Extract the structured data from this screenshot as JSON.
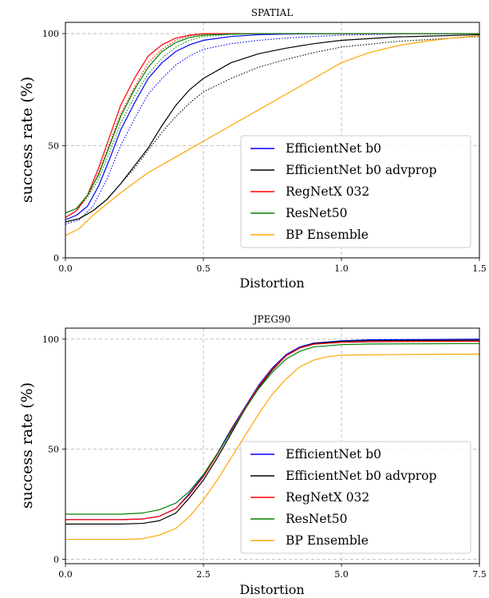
{
  "chart_data": [
    {
      "type": "line",
      "title": "SPATIAL",
      "xlabel": "Distortion",
      "ylabel": "success rate (%)",
      "xlim": [
        0,
        1.5
      ],
      "ylim": [
        0,
        105
      ],
      "xticks": [
        0,
        0.5,
        1.0,
        1.5
      ],
      "xtick_labels": [
        "0.0",
        "0.5",
        "1.0",
        "1.5"
      ],
      "yticks": [
        0,
        50,
        100
      ],
      "ytick_labels": [
        "0",
        "50",
        "100"
      ],
      "grid": true,
      "legend_position": "lower-right",
      "series": [
        {
          "name": "EfficientNet b0",
          "color": "#0000ff",
          "dash": false,
          "points": [
            [
              0,
              17
            ],
            [
              0.04,
              19
            ],
            [
              0.08,
              23
            ],
            [
              0.12,
              32
            ],
            [
              0.16,
              44
            ],
            [
              0.2,
              57
            ],
            [
              0.25,
              69
            ],
            [
              0.3,
              80
            ],
            [
              0.35,
              87
            ],
            [
              0.4,
              92
            ],
            [
              0.45,
              95
            ],
            [
              0.5,
              97
            ],
            [
              0.6,
              98.7
            ],
            [
              0.7,
              99.5
            ],
            [
              0.8,
              99.8
            ],
            [
              1.0,
              100
            ],
            [
              1.5,
              100
            ]
          ]
        },
        {
          "name": "EfficientNet b0 advprop",
          "color": "#000000",
          "dash": false,
          "points": [
            [
              0,
              16
            ],
            [
              0.05,
              17.5
            ],
            [
              0.1,
              21
            ],
            [
              0.15,
              26
            ],
            [
              0.2,
              33
            ],
            [
              0.25,
              41
            ],
            [
              0.3,
              49
            ],
            [
              0.35,
              59
            ],
            [
              0.4,
              68
            ],
            [
              0.45,
              75
            ],
            [
              0.5,
              80
            ],
            [
              0.6,
              87
            ],
            [
              0.7,
              91
            ],
            [
              0.8,
              93.5
            ],
            [
              0.9,
              95.5
            ],
            [
              1.0,
              97
            ],
            [
              1.2,
              98.5
            ],
            [
              1.5,
              99.5
            ]
          ]
        },
        {
          "name": "RegNetX 032",
          "color": "#ff0000",
          "dash": false,
          "points": [
            [
              0,
              18
            ],
            [
              0.04,
              21
            ],
            [
              0.08,
              28
            ],
            [
              0.12,
              40
            ],
            [
              0.16,
              54
            ],
            [
              0.2,
              68
            ],
            [
              0.25,
              80
            ],
            [
              0.3,
              90
            ],
            [
              0.35,
              95
            ],
            [
              0.4,
              98
            ],
            [
              0.45,
              99.3
            ],
            [
              0.5,
              100
            ],
            [
              1.5,
              100
            ]
          ]
        },
        {
          "name": "ResNet50",
          "color": "#008000",
          "dash": false,
          "points": [
            [
              0,
              20
            ],
            [
              0.04,
              22
            ],
            [
              0.08,
              28
            ],
            [
              0.12,
              37
            ],
            [
              0.16,
              50
            ],
            [
              0.2,
              63
            ],
            [
              0.25,
              75
            ],
            [
              0.3,
              85
            ],
            [
              0.35,
              92
            ],
            [
              0.4,
              96
            ],
            [
              0.45,
              98.3
            ],
            [
              0.5,
              99.3
            ],
            [
              0.6,
              99.8
            ],
            [
              0.7,
              100
            ],
            [
              1.5,
              100
            ]
          ]
        },
        {
          "name": "BP Ensemble",
          "color": "#ffa500",
          "dash": false,
          "points": [
            [
              0,
              10
            ],
            [
              0.05,
              13
            ],
            [
              0.1,
              19
            ],
            [
              0.15,
              24
            ],
            [
              0.2,
              29
            ],
            [
              0.3,
              38
            ],
            [
              0.4,
              45
            ],
            [
              0.5,
              52
            ],
            [
              0.6,
              59
            ],
            [
              0.7,
              66
            ],
            [
              0.8,
              73
            ],
            [
              0.9,
              80
            ],
            [
              1.0,
              87
            ],
            [
              1.1,
              91.5
            ],
            [
              1.2,
              94.5
            ],
            [
              1.3,
              96.5
            ],
            [
              1.4,
              98
            ],
            [
              1.5,
              99
            ]
          ]
        },
        {
          "name": "",
          "color": "#0000ff",
          "dash": true,
          "points": [
            [
              0,
              15
            ],
            [
              0.05,
              17
            ],
            [
              0.1,
              23
            ],
            [
              0.15,
              35
            ],
            [
              0.2,
              50
            ],
            [
              0.25,
              62
            ],
            [
              0.3,
              73
            ],
            [
              0.35,
              80
            ],
            [
              0.4,
              86
            ],
            [
              0.45,
              90
            ],
            [
              0.5,
              93
            ],
            [
              0.6,
              95.5
            ],
            [
              0.7,
              97
            ],
            [
              0.8,
              98
            ],
            [
              0.9,
              98.7
            ],
            [
              1.0,
              99.3
            ],
            [
              1.2,
              99.8
            ],
            [
              1.5,
              100
            ]
          ]
        },
        {
          "name": "",
          "color": "#000000",
          "dash": true,
          "points": [
            [
              0,
              16
            ],
            [
              0.05,
              17.5
            ],
            [
              0.1,
              21
            ],
            [
              0.15,
              26
            ],
            [
              0.2,
              33
            ],
            [
              0.25,
              40
            ],
            [
              0.3,
              48
            ],
            [
              0.35,
              56
            ],
            [
              0.4,
              63
            ],
            [
              0.45,
              69
            ],
            [
              0.5,
              74
            ],
            [
              0.6,
              80
            ],
            [
              0.7,
              85
            ],
            [
              0.8,
              88.5
            ],
            [
              0.9,
              91.5
            ],
            [
              1.0,
              94
            ],
            [
              1.2,
              96.5
            ],
            [
              1.5,
              98.7
            ]
          ]
        },
        {
          "name": "",
          "color": "#ff0000",
          "dash": true,
          "points": [
            [
              0,
              18
            ],
            [
              0.04,
              21
            ],
            [
              0.08,
              27
            ],
            [
              0.12,
              38
            ],
            [
              0.16,
              51
            ],
            [
              0.2,
              64
            ],
            [
              0.25,
              76
            ],
            [
              0.3,
              87
            ],
            [
              0.35,
              93
            ],
            [
              0.4,
              97
            ],
            [
              0.45,
              99
            ],
            [
              0.5,
              99.8
            ],
            [
              1.5,
              100
            ]
          ]
        },
        {
          "name": "",
          "color": "#008000",
          "dash": true,
          "points": [
            [
              0,
              20
            ],
            [
              0.04,
              22
            ],
            [
              0.08,
              27
            ],
            [
              0.12,
              35
            ],
            [
              0.16,
              47
            ],
            [
              0.2,
              60
            ],
            [
              0.25,
              72
            ],
            [
              0.3,
              82
            ],
            [
              0.35,
              89
            ],
            [
              0.4,
              94
            ],
            [
              0.45,
              97
            ],
            [
              0.5,
              98.7
            ],
            [
              0.6,
              99.6
            ],
            [
              0.7,
              100
            ],
            [
              1.5,
              100
            ]
          ]
        }
      ]
    },
    {
      "type": "line",
      "title": "JPEG90",
      "xlabel": "Distortion",
      "ylabel": "success rate (%)",
      "xlim": [
        0,
        7.5
      ],
      "ylim": [
        -2,
        105
      ],
      "xticks": [
        0,
        2.5,
        5.0,
        7.5
      ],
      "xtick_labels": [
        "0.0",
        "2.5",
        "5.0",
        "7.5"
      ],
      "yticks": [
        0,
        50,
        100
      ],
      "ytick_labels": [
        "0",
        "50",
        "100"
      ],
      "grid": true,
      "legend_position": "lower-right",
      "series": [
        {
          "name": "EfficientNet b0",
          "color": "#0000ff",
          "dash": false,
          "points": [
            [
              0,
              18
            ],
            [
              1.0,
              18
            ],
            [
              1.4,
              18.3
            ],
            [
              1.7,
              19.5
            ],
            [
              2.0,
              23
            ],
            [
              2.25,
              30
            ],
            [
              2.5,
              38
            ],
            [
              2.75,
              48
            ],
            [
              3.0,
              59
            ],
            [
              3.25,
              69
            ],
            [
              3.5,
              79
            ],
            [
              3.75,
              87
            ],
            [
              4.0,
              93
            ],
            [
              4.25,
              96.5
            ],
            [
              4.5,
              98.2
            ],
            [
              5.0,
              99.2
            ],
            [
              5.5,
              99.7
            ],
            [
              7.5,
              100
            ]
          ]
        },
        {
          "name": "EfficientNet b0 advprop",
          "color": "#000000",
          "dash": false,
          "points": [
            [
              0,
              16
            ],
            [
              1.0,
              16
            ],
            [
              1.4,
              16.3
            ],
            [
              1.7,
              17.5
            ],
            [
              2.0,
              21
            ],
            [
              2.25,
              28
            ],
            [
              2.5,
              36
            ],
            [
              2.75,
              46
            ],
            [
              3.0,
              57
            ],
            [
              3.25,
              68
            ],
            [
              3.5,
              78
            ],
            [
              3.75,
              86
            ],
            [
              4.0,
              92.5
            ],
            [
              4.25,
              96
            ],
            [
              4.5,
              98
            ],
            [
              5.0,
              99
            ],
            [
              5.5,
              99.3
            ],
            [
              7.5,
              99.5
            ]
          ]
        },
        {
          "name": "RegNetX 032",
          "color": "#ff0000",
          "dash": false,
          "points": [
            [
              0,
              18
            ],
            [
              1.0,
              18
            ],
            [
              1.4,
              18.3
            ],
            [
              1.7,
              19.5
            ],
            [
              2.0,
              23
            ],
            [
              2.25,
              29.5
            ],
            [
              2.5,
              37.5
            ],
            [
              2.75,
              47.5
            ],
            [
              3.0,
              58.5
            ],
            [
              3.25,
              68.5
            ],
            [
              3.5,
              78.5
            ],
            [
              3.75,
              86.5
            ],
            [
              4.0,
              92.5
            ],
            [
              4.25,
              96
            ],
            [
              4.5,
              97.7
            ],
            [
              5.0,
              98.5
            ],
            [
              5.5,
              98.8
            ],
            [
              7.5,
              99
            ]
          ]
        },
        {
          "name": "ResNet50",
          "color": "#008000",
          "dash": false,
          "points": [
            [
              0,
              20.5
            ],
            [
              1.0,
              20.5
            ],
            [
              1.4,
              21
            ],
            [
              1.7,
              22.5
            ],
            [
              2.0,
              25.5
            ],
            [
              2.25,
              31
            ],
            [
              2.5,
              38.5
            ],
            [
              2.75,
              48
            ],
            [
              3.0,
              58
            ],
            [
              3.25,
              68
            ],
            [
              3.5,
              77.5
            ],
            [
              3.75,
              85
            ],
            [
              4.0,
              91
            ],
            [
              4.25,
              94.5
            ],
            [
              4.5,
              96.5
            ],
            [
              5.0,
              97.5
            ],
            [
              5.5,
              97.8
            ],
            [
              7.5,
              98
            ]
          ]
        },
        {
          "name": "BP Ensemble",
          "color": "#ffa500",
          "dash": false,
          "points": [
            [
              0,
              9
            ],
            [
              1.0,
              9
            ],
            [
              1.4,
              9.3
            ],
            [
              1.7,
              11
            ],
            [
              2.0,
              14
            ],
            [
              2.25,
              19.5
            ],
            [
              2.5,
              27
            ],
            [
              2.75,
              36
            ],
            [
              3.0,
              46
            ],
            [
              3.25,
              56
            ],
            [
              3.5,
              66
            ],
            [
              3.75,
              75
            ],
            [
              4.0,
              82
            ],
            [
              4.25,
              87.5
            ],
            [
              4.5,
              90.5
            ],
            [
              4.75,
              92
            ],
            [
              5.0,
              92.7
            ],
            [
              6.0,
              93
            ],
            [
              7.5,
              93.2
            ]
          ]
        }
      ]
    }
  ]
}
